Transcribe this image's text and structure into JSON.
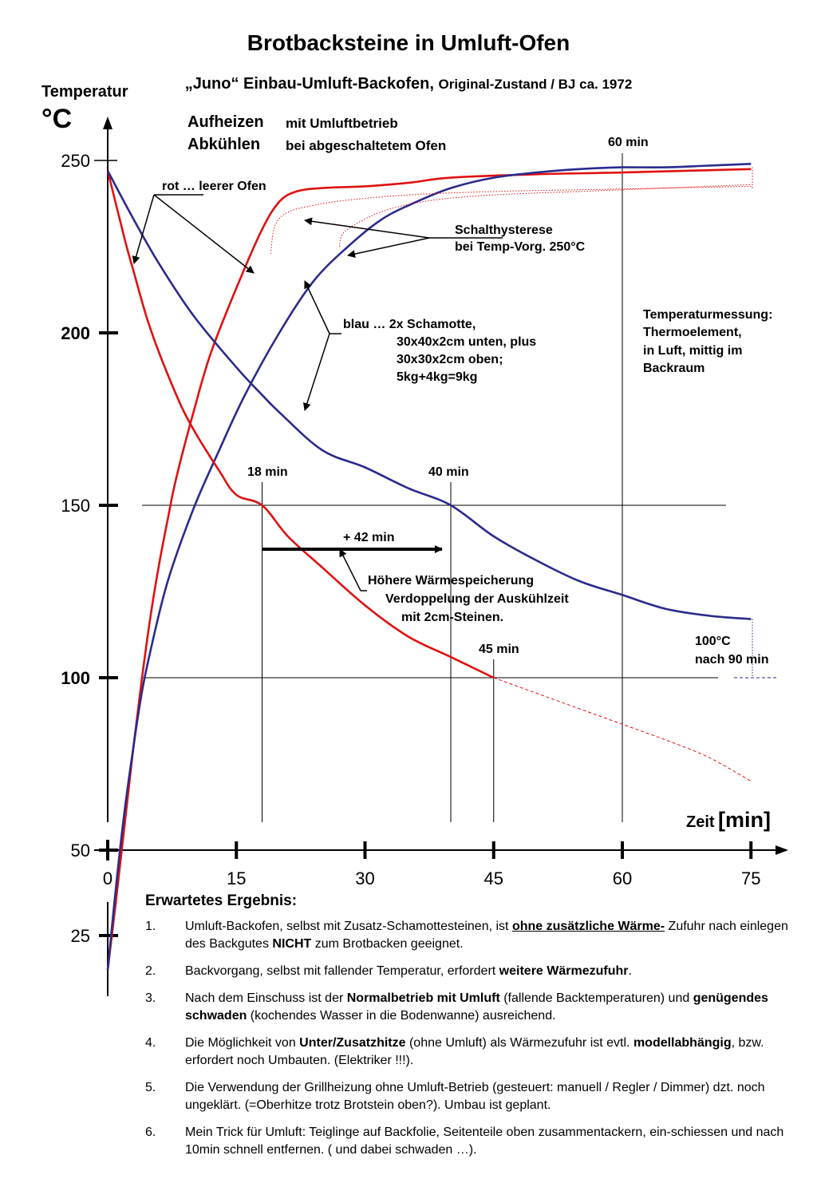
{
  "title": "Brotbacksteine in Umluft-Ofen",
  "subtitle_main": "„Juno“ Einbau-Umluft-Backofen,",
  "subtitle_detail": "Original-Zustand / BJ ca. 1972",
  "y_axis_label": "Temperatur",
  "y_axis_unit": "°C",
  "x_axis_label": "Zeit",
  "x_axis_unit": "[min]",
  "legend": {
    "heat_label": "Aufheizen",
    "heat_text": "mit Umluftbetrieb",
    "cool_label": "Abkühlen",
    "cool_text": "bei abgeschaltetem Ofen"
  },
  "annotations": {
    "red": "rot … leerer Ofen",
    "hyst_1": "Schalthysterese",
    "hyst_2": "bei Temp-Vorg. 250°C",
    "blue_1": "blau … 2x Schamotte,",
    "blue_2": "30x40x2cm unten, plus",
    "blue_3": "30x30x2cm oben;",
    "blue_4": "5kg+4kg=9kg",
    "measure_1": "Temperaturmessung:",
    "measure_2": "Thermoelement,",
    "measure_3": "in Luft, mittig im",
    "measure_4": "Backraum",
    "m60": "60 min",
    "m18": "18 min",
    "m40": "40 min",
    "plus42": "+ 42 min",
    "storage_1": "Höhere Wärmespeicherung",
    "storage_2": "Verdoppelung der Auskühlzeit",
    "storage_3": "mit 2cm-Steinen.",
    "m45": "45 min",
    "end_1": "100°C",
    "end_2": "nach 90 min"
  },
  "colors": {
    "red": "#e01010",
    "blue": "#2a2a8c",
    "axis": "#000000"
  },
  "chart_data": {
    "type": "line",
    "xlabel": "Zeit [min]",
    "ylabel": "Temperatur °C",
    "xlim": [
      0,
      75
    ],
    "ylim": [
      20,
      250
    ],
    "x_ticks": [
      0,
      15,
      30,
      45,
      60,
      75
    ],
    "x_tick_labels": [
      "0",
      "15",
      "30",
      "45",
      "60",
      "75"
    ],
    "y_ticks": [
      25,
      50,
      100,
      150,
      200,
      250
    ],
    "y_tick_labels": [
      "25",
      "50",
      "100",
      "150",
      "200",
      "250"
    ],
    "reference_lines": {
      "horizontal": [
        150,
        100
      ],
      "vertical": [
        18,
        40,
        45,
        60
      ]
    },
    "series": [
      {
        "role": "red-heating",
        "color": "#e01010",
        "x": [
          0,
          1,
          2,
          3,
          4,
          5,
          6,
          7,
          8,
          10,
          12,
          15,
          18,
          20,
          22,
          25,
          30,
          35,
          40,
          50,
          60,
          75
        ],
        "y": [
          15,
          36,
          58,
          80,
          100,
          118,
          133,
          146,
          158,
          177,
          194,
          213,
          230,
          238,
          241,
          242,
          242.5,
          243.5,
          245,
          246,
          246.5,
          247.5
        ]
      },
      {
        "role": "blue-heating",
        "color": "#2a2a8c",
        "x": [
          0,
          1,
          2,
          3,
          4,
          5,
          7,
          10,
          13,
          16,
          20,
          24,
          28,
          32,
          36,
          40,
          45,
          50,
          55,
          60,
          65,
          70,
          75
        ],
        "y": [
          15,
          40,
          62,
          80,
          96,
          108,
          128,
          149,
          166,
          182,
          200,
          215,
          225,
          233,
          238,
          242,
          245,
          246.5,
          247.5,
          248,
          248,
          248.5,
          249
        ]
      },
      {
        "role": "red-cooling",
        "color": "#e01010",
        "x": [
          0,
          2,
          3,
          5,
          8,
          10,
          13,
          15,
          18,
          21,
          25,
          30,
          35,
          40,
          45
        ],
        "y": [
          247,
          227,
          218,
          201,
          182,
          172,
          160,
          153,
          150,
          141,
          132,
          121,
          112,
          106,
          100
        ]
      },
      {
        "role": "red-cooling-extrapolated",
        "color": "#e01010",
        "dashed": true,
        "x": [
          45,
          50,
          55,
          60,
          65,
          70,
          75
        ],
        "y": [
          100,
          95.5,
          91,
          86.5,
          82,
          77,
          70
        ]
      },
      {
        "role": "blue-cooling",
        "color": "#2a2a8c",
        "x": [
          0,
          3,
          6,
          10,
          15,
          18,
          20,
          25,
          30,
          35,
          40,
          45,
          50,
          55,
          60,
          65,
          70,
          75
        ],
        "y": [
          247,
          233,
          220,
          205,
          190,
          182,
          177,
          166,
          161,
          155,
          150,
          141,
          134,
          128,
          124,
          120,
          118,
          117
        ]
      },
      {
        "role": "red-hysteresis",
        "color": "#e01010",
        "dotted": true,
        "x": [
          19,
          19.5,
          21,
          24,
          28,
          35,
          45,
          55,
          65,
          75
        ],
        "y": [
          223,
          231,
          235,
          237,
          238.5,
          240,
          241,
          241.5,
          242,
          242.5
        ]
      },
      {
        "role": "blue-hysteresis",
        "color": "#e01010",
        "dotted": true,
        "x": [
          27,
          27.5,
          30,
          33,
          38,
          45,
          55,
          65,
          75
        ],
        "y": [
          225,
          229,
          233,
          236,
          238.5,
          240,
          241,
          242,
          243
        ]
      }
    ]
  },
  "results": {
    "heading": "Erwartetes Ergebnis:",
    "items": [
      {
        "num": "1.",
        "a": "Umluft-Backofen, selbst mit Zusatz-Schamottesteinen, ist ",
        "b": "ohne zusätzliche Wärme-",
        "c": " Zufuhr nach einlegen des Backgutes ",
        "d": "NICHT",
        "e": " zum Brotbacken geeignet."
      },
      {
        "num": "2.",
        "a": "Backvorgang, selbst mit fallender Temperatur, erfordert ",
        "b": "weitere Wärmezufuhr",
        "c": "."
      },
      {
        "num": "3.",
        "a": "Nach dem Einschuss ist der ",
        "b": "Normalbetrieb mit Umluft",
        "c": " (fallende Backtemperaturen) und ",
        "d": "genügendes schwaden",
        "e": " (kochendes Wasser in die Bodenwanne) ausreichend."
      },
      {
        "num": "4.",
        "a": "Die Möglichkeit von ",
        "b": "Unter/Zusatzhitze",
        "c": " (ohne Umluft) als Wärmezufuhr ist evtl. ",
        "d": "modellabhängig",
        "e": ", bzw. erfordert noch Umbauten. (Elektriker !!!)."
      },
      {
        "num": "5.",
        "a": "Die Verwendung der Grillheizung ohne Umluft-Betrieb  (gesteuert: manuell / Regler / Dimmer) dzt. noch ungeklärt. (=Oberhitze trotz Brotstein oben?). Umbau ist geplant."
      },
      {
        "num": "6.",
        "a": "Mein Trick für Umluft: Teiglinge auf Backfolie, Seitenteile oben zusammentackern, ein-schiessen und nach 10min schnell entfernen. ( und dabei schwaden …)."
      }
    ]
  }
}
